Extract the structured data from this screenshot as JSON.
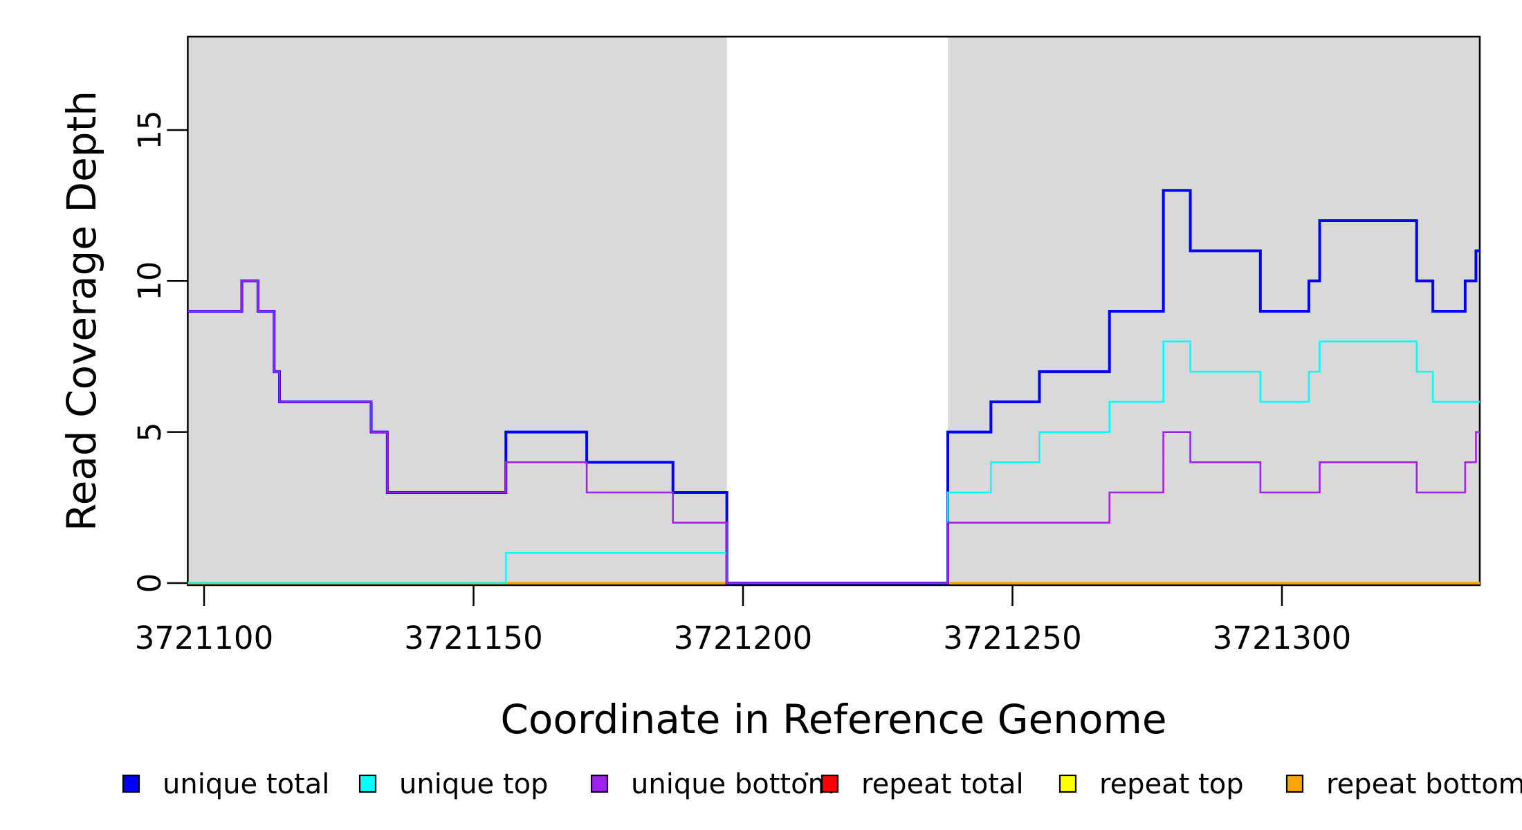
{
  "chart_data": {
    "type": "line",
    "subtype": "step-coverage-plot",
    "title": "",
    "xlabel": "Coordinate in Reference Genome",
    "ylabel": "Read Coverage Depth",
    "x_domain": [
      3721096.97,
      3721336.71
    ],
    "y_ticks": [
      0,
      5,
      10,
      15
    ],
    "x_ticks": [
      3721100,
      3721150,
      3721200,
      3721250,
      3721300
    ],
    "y_max_visible": 18.1,
    "grid": false,
    "background_shading": {
      "color": "#d9d9d9",
      "regions": [
        [
          3721096.97,
          3721197
        ],
        [
          3721238,
          3721336.71
        ]
      ],
      "note": "gray shaded blocks with white gap 3721197-3721238 where all coverage is 0"
    },
    "draw_order": [
      "repeat total",
      "repeat top",
      "repeat bottom",
      "unique total",
      "unique top",
      "unique bottom"
    ],
    "series": [
      {
        "name": "unique total",
        "color": "#0000ff",
        "line_width": 4,
        "steps": [
          [
            3721097,
            9
          ],
          [
            3721107,
            10
          ],
          [
            3721110,
            9
          ],
          [
            3721113,
            7
          ],
          [
            3721114,
            6
          ],
          [
            3721131,
            5
          ],
          [
            3721134,
            3
          ],
          [
            3721156,
            5
          ],
          [
            3721171,
            4
          ],
          [
            3721187,
            3
          ],
          [
            3721197,
            0
          ],
          [
            3721238,
            5
          ],
          [
            3721246,
            6
          ],
          [
            3721255,
            7
          ],
          [
            3721268,
            9
          ],
          [
            3721278,
            13
          ],
          [
            3721283,
            11
          ],
          [
            3721296,
            9
          ],
          [
            3721305,
            10
          ],
          [
            3721307,
            12
          ],
          [
            3721325,
            10
          ],
          [
            3721328,
            9
          ],
          [
            3721334,
            10
          ],
          [
            3721336,
            11
          ]
        ]
      },
      {
        "name": "unique top",
        "color": "#00ffff",
        "line_width": 2.6,
        "steps": [
          [
            3721097,
            0
          ],
          [
            3721156,
            1
          ],
          [
            3721197,
            0
          ],
          [
            3721238,
            3
          ],
          [
            3721246,
            4
          ],
          [
            3721255,
            5
          ],
          [
            3721268,
            6
          ],
          [
            3721278,
            8
          ],
          [
            3721283,
            7
          ],
          [
            3721296,
            6
          ],
          [
            3721305,
            7
          ],
          [
            3721307,
            8
          ],
          [
            3721325,
            7
          ],
          [
            3721328,
            6
          ]
        ]
      },
      {
        "name": "unique bottom",
        "color": "#a020f0",
        "line_width": 2.6,
        "steps": [
          [
            3721097,
            9
          ],
          [
            3721107,
            10
          ],
          [
            3721110,
            9
          ],
          [
            3721113,
            7
          ],
          [
            3721114,
            6
          ],
          [
            3721131,
            5
          ],
          [
            3721134,
            3
          ],
          [
            3721156,
            4
          ],
          [
            3721171,
            3
          ],
          [
            3721187,
            2
          ],
          [
            3721197,
            0
          ],
          [
            3721238,
            2
          ],
          [
            3721268,
            3
          ],
          [
            3721278,
            5
          ],
          [
            3721283,
            4
          ],
          [
            3721296,
            3
          ],
          [
            3721307,
            4
          ],
          [
            3721325,
            3
          ],
          [
            3721334,
            4
          ],
          [
            3721336,
            5
          ]
        ]
      },
      {
        "name": "repeat total",
        "color": "#ff0000",
        "line_width": 3.2,
        "steps": [
          [
            3721097,
            0
          ]
        ]
      },
      {
        "name": "repeat top",
        "color": "#ffff00",
        "line_width": 3.2,
        "steps": [
          [
            3721097,
            0
          ]
        ]
      },
      {
        "name": "repeat bottom",
        "color": "#ffa500",
        "line_width": 3.4,
        "steps": [
          [
            3721097,
            0
          ]
        ]
      }
    ],
    "legend": {
      "position": "bottom",
      "entries": [
        {
          "label": "unique total",
          "color": "#0000ff"
        },
        {
          "label": "unique top",
          "color": "#00ffff"
        },
        {
          "label": "unique bottom",
          "color": "#a020f0"
        },
        {
          "label": "repeat total",
          "color": "#ff0000"
        },
        {
          "label": "repeat top",
          "color": "#ffff00"
        },
        {
          "label": "repeat bottom",
          "color": "#ffa500"
        }
      ]
    }
  }
}
